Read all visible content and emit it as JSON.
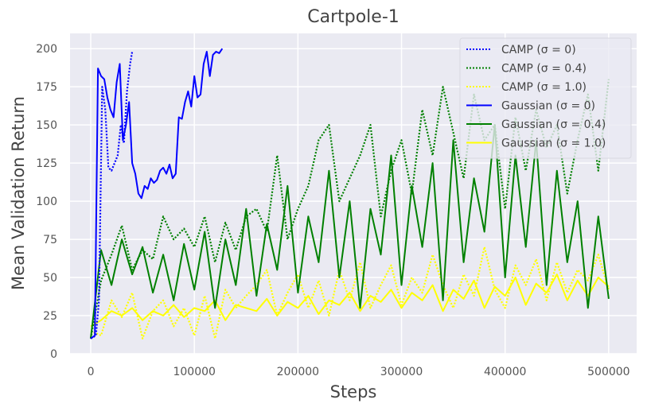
{
  "chart_data": {
    "type": "line",
    "title": "Cartpole-1",
    "xlabel": "Steps",
    "ylabel": "Mean Validation Return",
    "xlim": [
      -20000,
      527000
    ],
    "ylim": [
      0,
      210
    ],
    "xticks": [
      0,
      100000,
      200000,
      300000,
      400000,
      500000
    ],
    "xtick_labels": [
      "0",
      "100000",
      "200000",
      "300000",
      "400000",
      "500000"
    ],
    "yticks": [
      0,
      25,
      50,
      75,
      100,
      125,
      150,
      175,
      200
    ],
    "ytick_labels": [
      "0",
      "25",
      "50",
      "75",
      "100",
      "125",
      "150",
      "175",
      "200"
    ],
    "grid": true,
    "legend_position": "top-right",
    "series": [
      {
        "name": "CAMP (σ = 0)",
        "color": "#0000ff",
        "dash": "dotted",
        "x": [
          0,
          5000,
          8000,
          11000,
          14000,
          17000,
          20000,
          23000,
          26000,
          29000,
          32000,
          35000,
          38000,
          40000
        ],
        "y": [
          10,
          12,
          35,
          175,
          160,
          122,
          120,
          125,
          130,
          150,
          138,
          172,
          190,
          198
        ]
      },
      {
        "name": "CAMP (σ = 0.4)",
        "color": "#008000",
        "dash": "dotted",
        "x": [
          0,
          10000,
          20000,
          30000,
          40000,
          50000,
          60000,
          70000,
          80000,
          90000,
          100000,
          110000,
          120000,
          130000,
          140000,
          150000,
          160000,
          170000,
          180000,
          190000,
          200000,
          210000,
          220000,
          230000,
          240000,
          250000,
          260000,
          270000,
          280000,
          290000,
          300000,
          310000,
          320000,
          330000,
          340000,
          350000,
          360000,
          370000,
          380000,
          390000,
          400000,
          410000,
          420000,
          430000,
          440000,
          450000,
          460000,
          470000,
          480000,
          490000,
          500000
        ],
        "y": [
          10,
          48,
          65,
          84,
          55,
          68,
          62,
          90,
          75,
          82,
          70,
          90,
          60,
          86,
          68,
          90,
          95,
          80,
          130,
          75,
          95,
          110,
          140,
          150,
          100,
          115,
          130,
          150,
          90,
          120,
          140,
          105,
          160,
          130,
          175,
          145,
          115,
          170,
          140,
          150,
          95,
          155,
          120,
          160,
          135,
          150,
          105,
          140,
          170,
          120,
          180
        ]
      },
      {
        "name": "CAMP (σ = 1.0)",
        "color": "#ffff00",
        "dash": "dotted",
        "x": [
          0,
          10000,
          20000,
          30000,
          40000,
          50000,
          60000,
          70000,
          80000,
          90000,
          100000,
          110000,
          120000,
          130000,
          140000,
          150000,
          160000,
          170000,
          180000,
          190000,
          200000,
          210000,
          220000,
          230000,
          240000,
          250000,
          260000,
          270000,
          280000,
          290000,
          300000,
          310000,
          320000,
          330000,
          340000,
          350000,
          360000,
          370000,
          380000,
          390000,
          400000,
          410000,
          420000,
          430000,
          440000,
          450000,
          460000,
          470000,
          480000,
          490000,
          500000
        ],
        "y": [
          15,
          12,
          35,
          24,
          40,
          10,
          28,
          35,
          18,
          30,
          12,
          38,
          10,
          42,
          30,
          38,
          45,
          55,
          25,
          40,
          52,
          30,
          48,
          25,
          55,
          35,
          60,
          30,
          45,
          58,
          32,
          50,
          40,
          65,
          45,
          30,
          52,
          38,
          70,
          42,
          30,
          58,
          45,
          62,
          35,
          60,
          40,
          55,
          48,
          65,
          42
        ]
      },
      {
        "name": "Gaussian (σ = 0)",
        "color": "#0000ff",
        "dash": "solid",
        "x": [
          0,
          4000,
          7000,
          10000,
          13000,
          16000,
          19000,
          22000,
          25000,
          28000,
          31000,
          34000,
          37000,
          40000,
          43000,
          46000,
          49000,
          52000,
          55000,
          58000,
          61000,
          64000,
          67000,
          70000,
          73000,
          76000,
          79000,
          82000,
          85000,
          88000,
          91000,
          94000,
          97000,
          100000,
          103000,
          106000,
          109000,
          112000,
          115000,
          118000,
          121000,
          124000,
          127000
        ],
        "y": [
          10,
          12,
          187,
          182,
          180,
          168,
          160,
          155,
          178,
          190,
          140,
          150,
          165,
          125,
          118,
          105,
          102,
          110,
          108,
          115,
          112,
          114,
          120,
          122,
          118,
          124,
          115,
          118,
          155,
          154,
          165,
          172,
          162,
          182,
          168,
          170,
          190,
          198,
          182,
          196,
          198,
          197,
          200
        ]
      },
      {
        "name": "Gaussian (σ = 0.4)",
        "color": "#008000",
        "dash": "solid",
        "x": [
          0,
          10000,
          20000,
          30000,
          40000,
          50000,
          60000,
          70000,
          80000,
          90000,
          100000,
          110000,
          120000,
          130000,
          140000,
          150000,
          160000,
          170000,
          180000,
          190000,
          200000,
          210000,
          220000,
          230000,
          240000,
          250000,
          260000,
          270000,
          280000,
          290000,
          300000,
          310000,
          320000,
          330000,
          340000,
          350000,
          360000,
          370000,
          380000,
          390000,
          400000,
          410000,
          420000,
          430000,
          440000,
          450000,
          460000,
          470000,
          480000,
          490000,
          500000
        ],
        "y": [
          10,
          68,
          45,
          75,
          52,
          70,
          40,
          65,
          35,
          72,
          42,
          80,
          30,
          75,
          45,
          95,
          38,
          85,
          55,
          110,
          40,
          90,
          60,
          120,
          50,
          100,
          30,
          95,
          65,
          130,
          45,
          110,
          70,
          125,
          35,
          140,
          60,
          115,
          80,
          150,
          50,
          130,
          70,
          140,
          45,
          120,
          60,
          100,
          30,
          90,
          36
        ]
      },
      {
        "name": "Gaussian (σ = 1.0)",
        "color": "#ffff00",
        "dash": "solid",
        "x": [
          0,
          10000,
          20000,
          30000,
          40000,
          50000,
          60000,
          70000,
          80000,
          90000,
          100000,
          110000,
          120000,
          130000,
          140000,
          150000,
          160000,
          170000,
          180000,
          190000,
          200000,
          210000,
          220000,
          230000,
          240000,
          250000,
          260000,
          270000,
          280000,
          290000,
          300000,
          310000,
          320000,
          330000,
          340000,
          350000,
          360000,
          370000,
          380000,
          390000,
          400000,
          410000,
          420000,
          430000,
          440000,
          450000,
          460000,
          470000,
          480000,
          490000,
          500000
        ],
        "y": [
          18,
          22,
          28,
          25,
          30,
          22,
          28,
          25,
          32,
          24,
          30,
          28,
          35,
          22,
          32,
          30,
          28,
          36,
          25,
          34,
          30,
          38,
          26,
          35,
          32,
          40,
          28,
          38,
          34,
          42,
          30,
          40,
          35,
          45,
          28,
          42,
          36,
          48,
          30,
          44,
          38,
          50,
          32,
          46,
          40,
          52,
          35,
          48,
          38,
          50,
          44
        ]
      }
    ]
  }
}
